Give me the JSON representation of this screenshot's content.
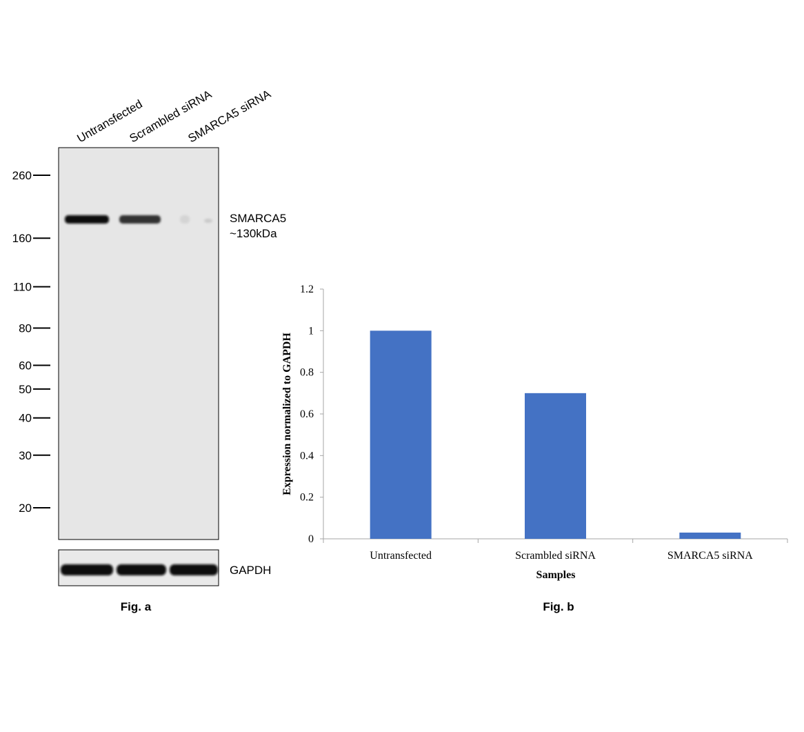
{
  "blot": {
    "lane_labels": [
      "Untransfected",
      "Scrambled siRNA",
      "SMARCA5 siRNA"
    ],
    "markers": [
      {
        "label": "260",
        "kda": 260
      },
      {
        "label": "160",
        "kda": 160
      },
      {
        "label": "110",
        "kda": 110
      },
      {
        "label": "80",
        "kda": 80
      },
      {
        "label": "60",
        "kda": 60
      },
      {
        "label": "50",
        "kda": 50
      },
      {
        "label": "40",
        "kda": 40
      },
      {
        "label": "30",
        "kda": 30
      },
      {
        "label": "20",
        "kda": 20
      }
    ],
    "target_label": "SMARCA5",
    "target_size_label": "~130kDa",
    "loading_control_label": "GAPDH",
    "target_band_intensity": [
      1.0,
      0.82,
      0.08
    ],
    "loading_band_intensity": [
      1.0,
      1.0,
      1.0
    ],
    "caption": "Fig. a"
  },
  "chart_data": {
    "type": "bar",
    "categories": [
      "Untransfected",
      "Scrambled siRNA",
      "SMARCA5 siRNA"
    ],
    "values": [
      1.0,
      0.7,
      0.03
    ],
    "title": "",
    "xlabel": "Samples",
    "ylabel": "Expression normalized to GAPDH",
    "ylim": [
      0,
      1.2
    ],
    "yticks": [
      0,
      0.2,
      0.4,
      0.6,
      0.8,
      1,
      1.2
    ],
    "ytick_labels": [
      "0",
      "0.2",
      "0.4",
      "0.6",
      "0.8",
      "1",
      "1.2"
    ],
    "grid": false,
    "legend": "none",
    "bar_color": "#4472C4",
    "caption": "Fig. b"
  }
}
